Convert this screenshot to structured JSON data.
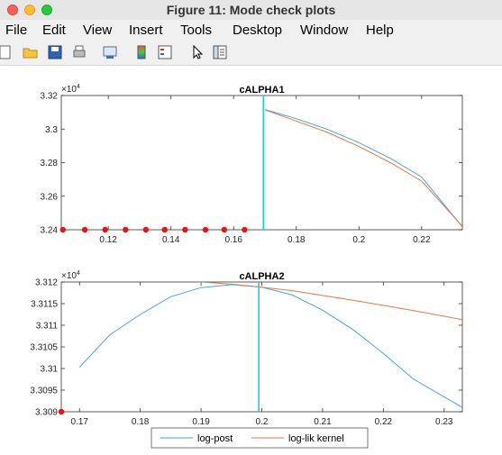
{
  "window": {
    "title": "Figure 11: Mode check plots"
  },
  "menu": {
    "items": [
      "File",
      "Edit",
      "View",
      "Insert",
      "Tools",
      "Desktop",
      "Window",
      "Help"
    ]
  },
  "toolbar": {
    "icons": [
      "new-figure-icon",
      "open-file-icon",
      "save-icon",
      "print-icon",
      "link-icon",
      "colorbar-icon",
      "legend-icon",
      "pointer-icon",
      "property-editor-icon"
    ]
  },
  "chart_data": [
    {
      "type": "line",
      "title": "cALPHA1",
      "exponent_label": "×10",
      "exponent_power": "4",
      "xlim": [
        0.105,
        0.233
      ],
      "ylim": [
        32400,
        33200
      ],
      "xticks": [
        0.12,
        0.14,
        0.16,
        0.18,
        0.2,
        0.22
      ],
      "xtick_labels": [
        "0.12",
        "0.14",
        "0.16",
        "0.18",
        "0.2",
        "0.22"
      ],
      "yticks": [
        32400,
        32600,
        32800,
        33000,
        33200
      ],
      "ytick_labels": [
        "3.24",
        "3.26",
        "3.28",
        "3.3",
        "3.32"
      ],
      "vline_x": 0.1695,
      "series": [
        {
          "name": "log-post",
          "color": "#4aa3df",
          "x": [
            0.17,
            0.18,
            0.19,
            0.2,
            0.21,
            0.22,
            0.233
          ],
          "y": [
            33116,
            33062,
            32998,
            32919,
            32826,
            32714,
            32417
          ]
        },
        {
          "name": "log-lik kernel",
          "color": "#e07b4a",
          "x": [
            0.17,
            0.18,
            0.19,
            0.2,
            0.21,
            0.22,
            0.233
          ],
          "y": [
            33114,
            33048,
            32980,
            32896,
            32800,
            32690,
            32421
          ]
        }
      ],
      "markers": {
        "color": "#ee1111",
        "x": [
          0.1055,
          0.1125,
          0.119,
          0.1255,
          0.132,
          0.138,
          0.1445,
          0.151,
          0.157,
          0.1635
        ],
        "y": [
          32400,
          32400,
          32400,
          32400,
          32400,
          32400,
          32400,
          32400,
          32400,
          32400
        ]
      }
    },
    {
      "type": "line",
      "title": "cALPHA2",
      "exponent_label": "×10",
      "exponent_power": "4",
      "xlim": [
        0.167,
        0.233
      ],
      "ylim": [
        33090,
        33120
      ],
      "xticks": [
        0.17,
        0.18,
        0.19,
        0.2,
        0.21,
        0.22,
        0.23
      ],
      "xtick_labels": [
        "0.17",
        "0.18",
        "0.19",
        "0.2",
        "0.21",
        "0.22",
        "0.23"
      ],
      "yticks": [
        33090,
        33095,
        33100,
        33105,
        33110,
        33115,
        33120
      ],
      "ytick_labels": [
        "3.309",
        "3.3095",
        "3.31",
        "3.3105",
        "3.311",
        "3.3115",
        "3.312"
      ],
      "vline_x": 0.1995,
      "series": [
        {
          "name": "log-post",
          "color": "#4aa3df",
          "x": [
            0.17,
            0.175,
            0.18,
            0.185,
            0.19,
            0.195,
            0.2,
            0.205,
            0.21,
            0.215,
            0.22,
            0.225,
            0.233
          ],
          "y": [
            33100.3,
            33107.8,
            33112.5,
            33116.6,
            33118.7,
            33119.4,
            33118.8,
            33117.0,
            33113.5,
            33109.0,
            33103.5,
            33097.5,
            33091.0
          ]
        },
        {
          "name": "log-lik kernel",
          "color": "#e07b4a",
          "x": [
            0.167,
            0.175,
            0.18,
            0.185,
            0.19,
            0.195,
            0.2,
            0.205,
            0.21,
            0.215,
            0.22,
            0.225,
            0.233
          ],
          "y": [
            33120.5,
            33120.8,
            33120.7,
            33120.5,
            33120.0,
            33119.5,
            33118.8,
            33118.0,
            33116.9,
            33115.8,
            33114.6,
            33113.4,
            33111.3
          ]
        }
      ],
      "markers": {
        "color": "#ee1111",
        "x": [
          0.167
        ],
        "y": [
          33090
        ]
      }
    }
  ],
  "legend": {
    "entries": [
      {
        "label": "log-post",
        "color": "#4aa3df"
      },
      {
        "label": "log-lik kernel",
        "color": "#e07b4a"
      }
    ]
  }
}
